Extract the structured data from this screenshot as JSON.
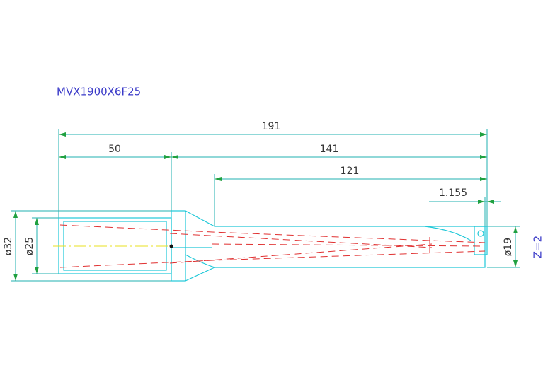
{
  "title": "MVX1900X6F25",
  "dimensions": {
    "overall_length": "191",
    "shank_length": "50",
    "body_length": "141",
    "flute_length": "121",
    "tip_offset": "1.155",
    "flange_diameter": "ø32",
    "shank_diameter": "ø25",
    "cutting_diameter": "ø19",
    "teeth": "Z=2"
  }
}
